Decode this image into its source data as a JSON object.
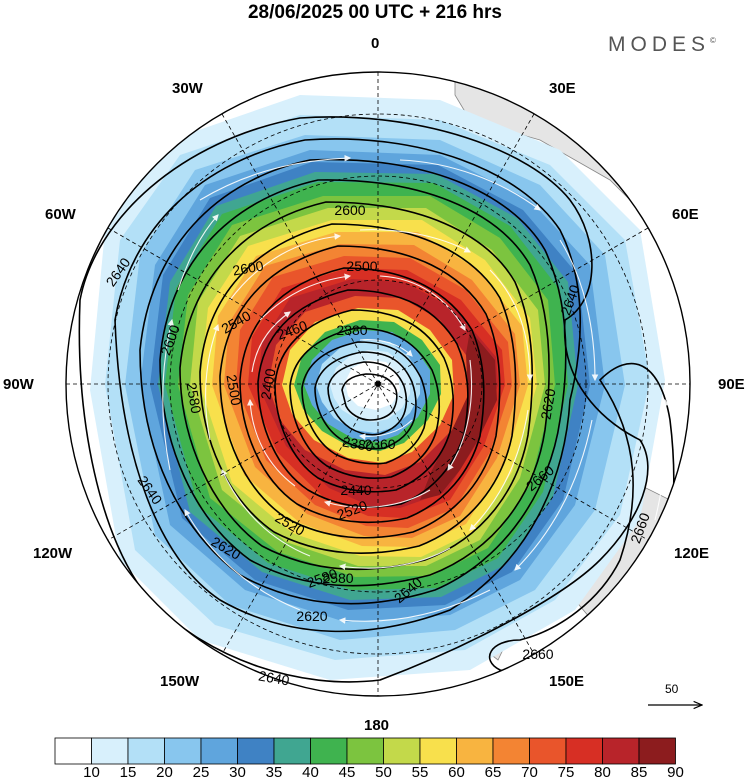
{
  "title": "28/06/2025  00 UTC  + 216 hrs",
  "brand": "MODES",
  "brand_mark": "©",
  "longitude_labels": {
    "top": "0",
    "bottom": "180",
    "left": "90W",
    "right": "90E",
    "nw1": "30W",
    "nw2": "60W",
    "ne1": "30E",
    "ne2": "60E",
    "sw1": "120W",
    "sw2": "150W",
    "se1": "120E",
    "se2": "150E"
  },
  "contour_labels": [
    "2640",
    "2600",
    "2600",
    "2500",
    "2540",
    "2460",
    "2380",
    "2600",
    "2580",
    "2500",
    "2400",
    "2380",
    "2360",
    "2640",
    "2620",
    "2580",
    "2440",
    "2520",
    "2520",
    "2580",
    "2620",
    "2640",
    "2660",
    "2660",
    "2660",
    "2640",
    "2620",
    "2640"
  ],
  "reference_vector": {
    "label": "50",
    "icon": "arrow-right-icon"
  },
  "colorbar": {
    "ticks": [
      "10",
      "15",
      "20",
      "25",
      "30",
      "35",
      "40",
      "45",
      "50",
      "55",
      "60",
      "65",
      "70",
      "75",
      "80",
      "85",
      "90"
    ],
    "colors": [
      "#ffffff",
      "#d8f0fc",
      "#b3e0f7",
      "#88c6ee",
      "#5fa5dd",
      "#3f82c4",
      "#40a691",
      "#3fb34f",
      "#7cc43f",
      "#c3d94a",
      "#f8e04c",
      "#f8b440",
      "#f38433",
      "#e9552b",
      "#d72f24",
      "#b8242a",
      "#8c1c1e"
    ]
  },
  "colors": {
    "land": "#e5e5e5",
    "contour": "#000000",
    "vector": "#ffffff"
  }
}
